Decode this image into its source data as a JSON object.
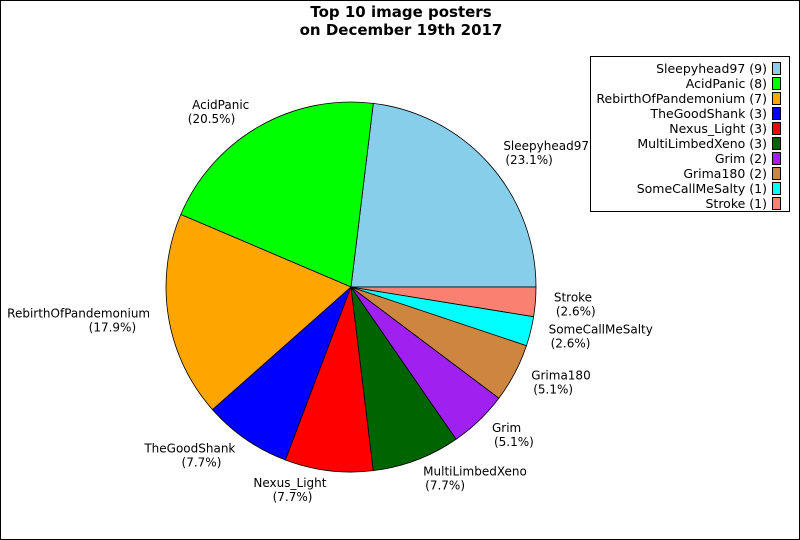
{
  "chart_data": {
    "type": "pie",
    "title_lines": [
      "Top 10 image posters",
      "on December 19th 2017"
    ],
    "slices": [
      {
        "label": "Sleepyhead97",
        "value": 9,
        "pct_label": "(23.1%)",
        "legend_label": "Sleepyhead97 (9)",
        "color": "#87ceeb"
      },
      {
        "label": "AcidPanic",
        "value": 8,
        "pct_label": "(20.5%)",
        "legend_label": "AcidPanic (8)",
        "color": "#00ff00"
      },
      {
        "label": "RebirthOfPandemonium",
        "value": 7,
        "pct_label": "(17.9%)",
        "legend_label": "RebirthOfPandemonium (7)",
        "color": "#ffa500"
      },
      {
        "label": "TheGoodShank",
        "value": 3,
        "pct_label": "(7.7%)",
        "legend_label": "TheGoodShank (3)",
        "color": "#0000ff"
      },
      {
        "label": "Nexus_Light",
        "value": 3,
        "pct_label": "(7.7%)",
        "legend_label": "Nexus_Light (3)",
        "color": "#ff0000"
      },
      {
        "label": "MultiLimbedXeno",
        "value": 3,
        "pct_label": "(7.7%)",
        "legend_label": "MultiLimbedXeno (3)",
        "color": "#006400"
      },
      {
        "label": "Grim",
        "value": 2,
        "pct_label": "(5.1%)",
        "legend_label": "Grim (2)",
        "color": "#a020f0"
      },
      {
        "label": "Grima180",
        "value": 2,
        "pct_label": "(5.1%)",
        "legend_label": "Grima180 (2)",
        "color": "#cd853f"
      },
      {
        "label": "SomeCallMeSalty",
        "value": 1,
        "pct_label": "(2.6%)",
        "legend_label": "SomeCallMeSalty (1)",
        "color": "#00ffff"
      },
      {
        "label": "Stroke",
        "value": 1,
        "pct_label": "(2.6%)",
        "legend_label": "Stroke (1)",
        "color": "#fa8072"
      }
    ],
    "start_angle_deg": 0,
    "direction": "counterclockwise",
    "legend_position": "top-right"
  }
}
